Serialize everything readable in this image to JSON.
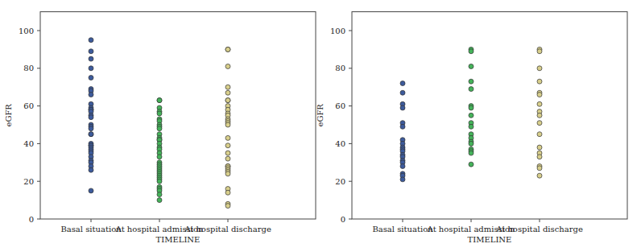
{
  "chart_data": [
    {
      "type": "scatter",
      "x_label": "TIMELINE",
      "y_label": "eGFR",
      "categories": [
        "Basal situation",
        "At hospital admission",
        "At hospital discharge"
      ],
      "colors": [
        "#3d5b9c",
        "#45b35a",
        "#d8cf8c"
      ],
      "values": [
        [
          95,
          89,
          85,
          80,
          75,
          69,
          68,
          66,
          61,
          59,
          58,
          58,
          57,
          55,
          54,
          50,
          49,
          48,
          45,
          45,
          40,
          39,
          39,
          38,
          37,
          36,
          35,
          33,
          31,
          30,
          28,
          26,
          15
        ],
        [
          63,
          63,
          59,
          57,
          56,
          53,
          52,
          50,
          49,
          48,
          45,
          43,
          42,
          42,
          40,
          38,
          37,
          35,
          33,
          30,
          29,
          28,
          27,
          26,
          25,
          24,
          23,
          22,
          21,
          20,
          17,
          16,
          15,
          13,
          10
        ],
        [
          90,
          90,
          81,
          70,
          67,
          63,
          63,
          60,
          58,
          56,
          55,
          53,
          52,
          51,
          50,
          43,
          39,
          35,
          32,
          28,
          28,
          27,
          26,
          25,
          24,
          16,
          14,
          8,
          7
        ]
      ],
      "ylim": [
        0,
        110
      ],
      "yticks": [
        0,
        20,
        40,
        60,
        80,
        100
      ],
      "marker": "circle"
    },
    {
      "type": "scatter",
      "x_label": "TIMELINE",
      "y_label": "eGFR",
      "categories": [
        "Basal situation",
        "At hospital admission",
        "At hospital discharge"
      ],
      "colors": [
        "#3d5b9c",
        "#45b35a",
        "#d8cf8c"
      ],
      "values": [
        [
          72,
          67,
          61,
          59,
          51,
          49,
          42,
          40,
          38,
          37,
          36,
          34,
          33,
          31,
          30,
          28,
          24,
          23,
          21
        ],
        [
          90,
          89,
          81,
          73,
          69,
          60,
          59,
          55,
          51,
          49,
          45,
          43,
          41,
          40,
          37,
          36,
          35,
          29
        ],
        [
          90,
          89,
          80,
          73,
          67,
          66,
          61,
          57,
          55,
          51,
          45,
          38,
          35,
          33,
          28,
          27,
          23
        ]
      ],
      "ylim": [
        0,
        110
      ],
      "yticks": [
        0,
        20,
        40,
        60,
        80,
        100
      ],
      "marker": "circle"
    }
  ]
}
